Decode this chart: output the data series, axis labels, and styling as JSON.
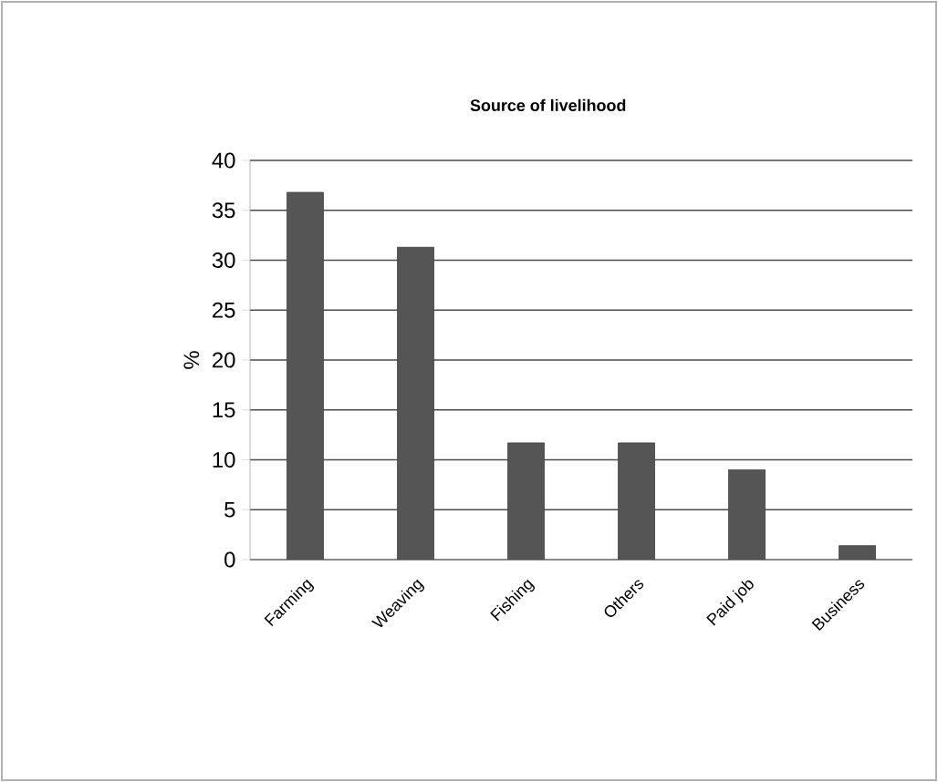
{
  "chart_data": {
    "type": "bar",
    "title": "Source of livelihood",
    "ylabel": "%",
    "categories": [
      "Farming",
      "Weaving",
      "Fishing",
      "Others",
      "Paid job",
      "Business"
    ],
    "values": [
      36.8,
      31.3,
      11.7,
      11.7,
      9.0,
      1.4
    ],
    "color": "#555555",
    "ylim": [
      0,
      40
    ],
    "yticks": [
      0,
      5,
      10,
      15,
      20,
      25,
      30,
      35,
      40
    ],
    "grid": "y"
  }
}
